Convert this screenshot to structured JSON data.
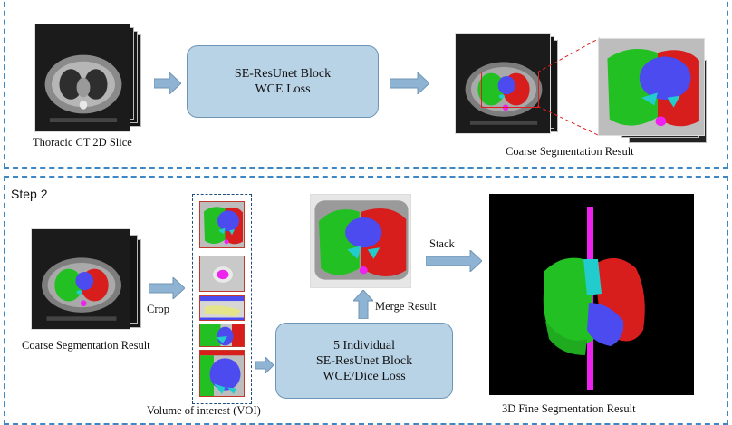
{
  "step1": {
    "input_caption": "Thoracic CT 2D Slice",
    "block_lines": [
      "SE-ResUnet Block",
      "WCE Loss"
    ],
    "output_caption": "Coarse Segmentation Result"
  },
  "step2": {
    "label": "Step 2",
    "input_caption": "Coarse Segmentation Result",
    "crop_label": "Crop",
    "voi_caption": "Volume of interest (VOI)",
    "block_lines": [
      "5 Individual",
      "SE-ResUnet Block",
      "WCE/Dice Loss"
    ],
    "merge_label": "Merge Result",
    "stack_label": "Stack",
    "output_caption": "3D Fine Segmentation Result"
  },
  "colors": {
    "dashed_border": "#3f86c4",
    "block_fill": "#b8d2e6",
    "arrow_fill": "#8fb3d3",
    "lung_left": "#22c022",
    "lung_right": "#d81d1d",
    "heart": "#4b4bf0",
    "aorta": "#ee22ee",
    "trachea": "#22cccc",
    "crop_box": "#e02020"
  }
}
